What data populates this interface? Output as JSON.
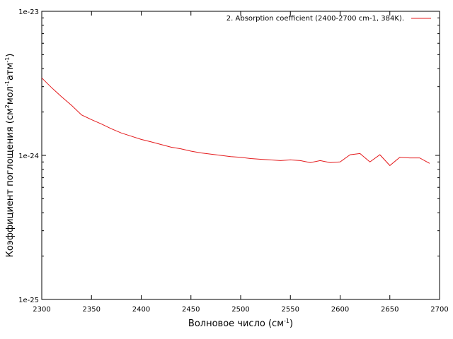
{
  "chart_data": {
    "type": "line",
    "title": "",
    "xlabel": {
      "text": "Волновое число (см",
      "sup": "-1",
      "close": ")"
    },
    "ylabel": {
      "prefix": "Коэффициент поглощения (см",
      "sup1": "2",
      "mid": "мол",
      "sup2": "-1",
      "mid2": "атм",
      "sup3": "-1",
      "close": ")"
    },
    "xlim": [
      2300,
      2700
    ],
    "ylim": [
      1e-25,
      1e-23
    ],
    "yscale": "log",
    "xticks": [
      2300,
      2350,
      2400,
      2450,
      2500,
      2550,
      2600,
      2650,
      2700
    ],
    "xtick_labels": [
      "2300",
      "2350",
      "2400",
      "2450",
      "2500",
      "2550",
      "2600",
      "2650",
      "2700"
    ],
    "yticks": [
      1e-25,
      1e-24,
      1e-23
    ],
    "ytick_labels": [
      "1e-25",
      "1e-24",
      "1e-23"
    ],
    "grid": false,
    "legend_position": "top-right",
    "series": [
      {
        "name": "2. Absorption coefficient (2400-2700 cm-1, 384K).",
        "color": "#e41a1c",
        "x": [
          2300,
          2310,
          2320,
          2330,
          2340,
          2350,
          2360,
          2370,
          2380,
          2390,
          2400,
          2410,
          2420,
          2430,
          2440,
          2450,
          2460,
          2470,
          2480,
          2490,
          2500,
          2510,
          2520,
          2530,
          2540,
          2550,
          2560,
          2570,
          2580,
          2590,
          2600,
          2610,
          2620,
          2630,
          2640,
          2650,
          2660,
          2670,
          2680,
          2690
        ],
        "y": [
          3.45e-24,
          2.95e-24,
          2.55e-24,
          2.22e-24,
          1.91e-24,
          1.77e-24,
          1.65e-24,
          1.53e-24,
          1.43e-24,
          1.36e-24,
          1.29e-24,
          1.24e-24,
          1.19e-24,
          1.14e-24,
          1.11e-24,
          1.07e-24,
          1.04e-24,
          1.02e-24,
          1e-24,
          9.8e-25,
          9.7e-25,
          9.5e-25,
          9.4e-25,
          9.3e-25,
          9.2e-25,
          9.3e-25,
          9.2e-25,
          8.9e-25,
          9.2e-25,
          8.9e-25,
          9e-25,
          1.01e-24,
          1.03e-24,
          9e-25,
          1.01e-24,
          8.5e-25,
          9.7e-25,
          9.6e-25,
          9.6e-25,
          8.8e-25
        ]
      }
    ]
  }
}
